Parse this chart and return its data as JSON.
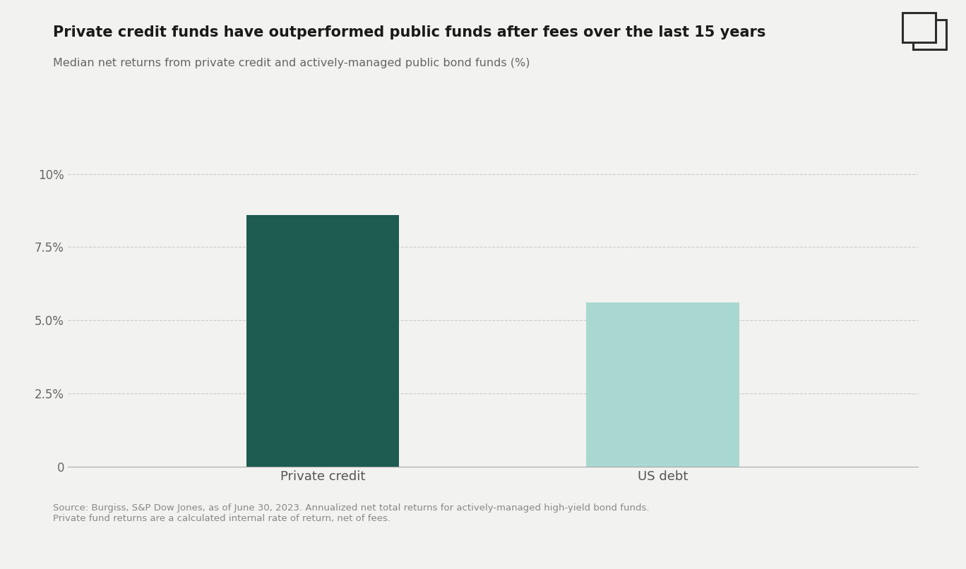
{
  "title": "Private credit funds have outperformed public funds after fees over the last 15 years",
  "subtitle": "Median net returns from private credit and actively-managed public bond funds (%)",
  "categories": [
    "Private credit",
    "US debt"
  ],
  "values": [
    8.6,
    5.6
  ],
  "bar_colors": [
    "#1e5c52",
    "#a8d8d0"
  ],
  "ylim": [
    0,
    10.5
  ],
  "yticks": [
    0,
    2.5,
    5.0,
    7.5,
    10.0
  ],
  "ytick_labels": [
    "0",
    "2.5%",
    "5.0%",
    "7.5%",
    "10%"
  ],
  "background_color": "#f2f2f0",
  "source_text": "Source: Burgiss, S&P Dow Jones, as of June 30, 2023. Annualized net total returns for actively-managed high-yield bond funds.\nPrivate fund returns are a calculated internal rate of return, net of fees.",
  "title_fontsize": 15,
  "subtitle_fontsize": 11.5,
  "bar_width": 0.18,
  "icon_color": "#2d2d2d",
  "positions": [
    0.3,
    0.7
  ]
}
